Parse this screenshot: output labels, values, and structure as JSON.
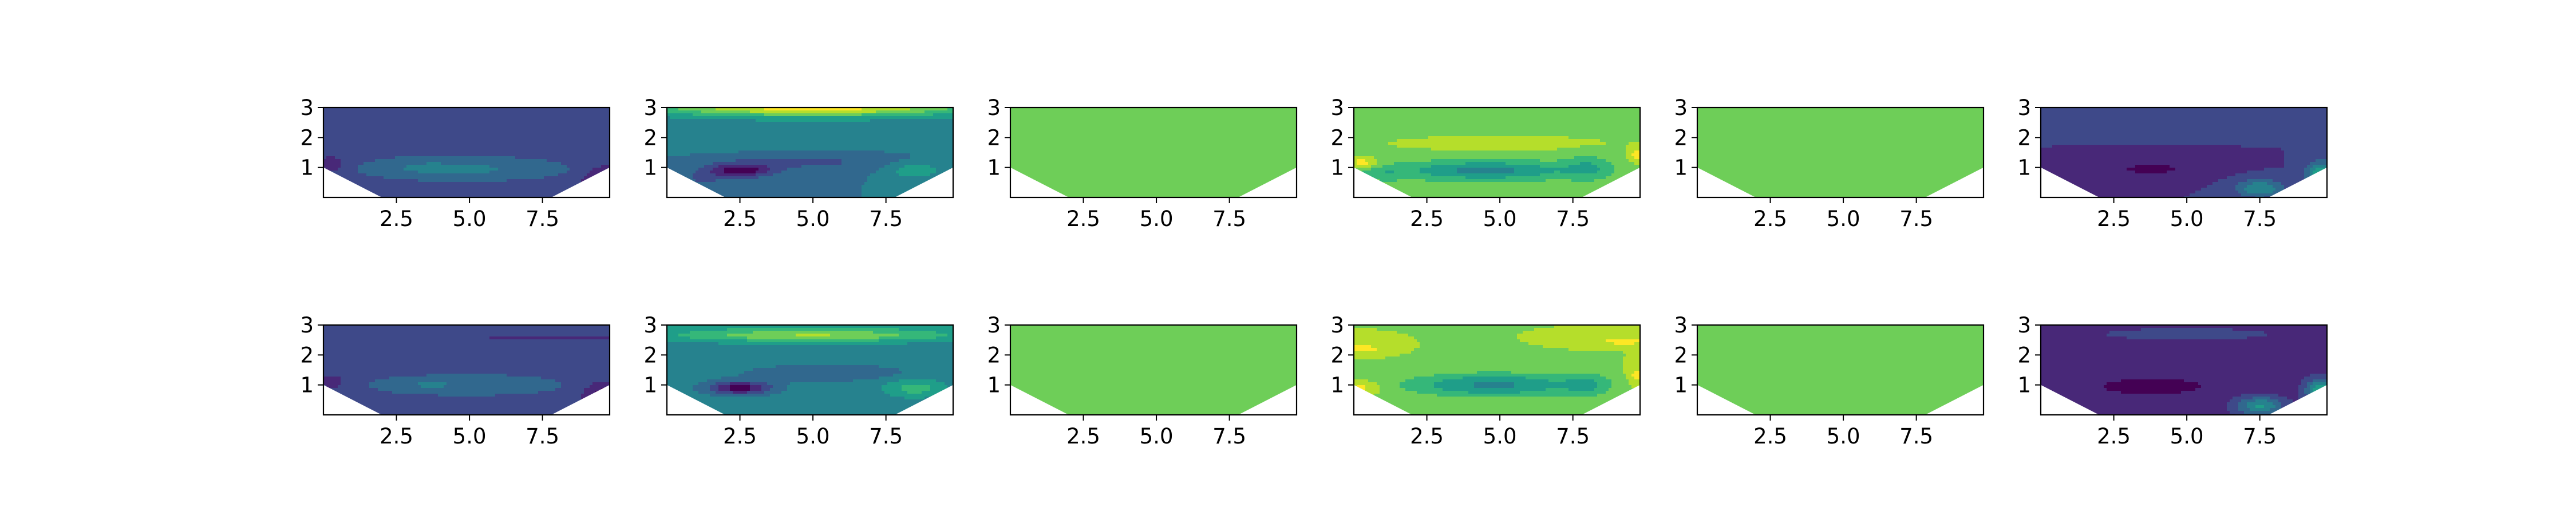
{
  "figure": {
    "background": "#ffffff",
    "grid": false,
    "legend": "none",
    "colormap": "viridis",
    "layout": "2 rows x 6 columns of filled contour panels"
  },
  "chart_data": {
    "type": "heatmap",
    "xlim": [
      0,
      9.8
    ],
    "ylim": [
      0,
      3
    ],
    "xticks": [
      "2.5",
      "5.0",
      "7.5"
    ],
    "yticks": [
      "1",
      "2",
      "3"
    ],
    "domain_boundary": {
      "description": "trapezoidal valley: data region is above a V-shaped bottom",
      "x": [
        0,
        2.0,
        7.8,
        9.8
      ],
      "y_bottom": [
        1.0,
        0.0,
        0.0,
        1.0
      ]
    },
    "panels": [
      {
        "row": 0,
        "col": 0,
        "style": "A",
        "mean": 0.25,
        "lobes": [
          {
            "x": 4.8,
            "y": 0.95,
            "sx": 3.4,
            "sy": 0.38,
            "a": 0.17
          },
          {
            "x": 3.2,
            "y": 1.05,
            "sx": 1.2,
            "sy": 0.25,
            "a": 0.04
          },
          {
            "x": 9.6,
            "y": 0.6,
            "sx": 0.7,
            "sy": 0.45,
            "a": -0.2
          },
          {
            "x": 0.3,
            "y": 1.1,
            "sx": 0.5,
            "sy": 0.3,
            "a": -0.12
          },
          {
            "x": 5.0,
            "y": 2.5,
            "sx": 6.0,
            "sy": 0.8,
            "a": 0.02
          }
        ]
      },
      {
        "row": 0,
        "col": 1,
        "style": "B",
        "mean": 0.4,
        "lobes": [
          {
            "x": 5.0,
            "y": 3.0,
            "sx": 6.0,
            "sy": 0.32,
            "a": 0.55
          },
          {
            "x": 5.0,
            "y": 2.0,
            "sx": 5.5,
            "sy": 0.5,
            "a": 0.08
          },
          {
            "x": 2.5,
            "y": 0.9,
            "sx": 1.1,
            "sy": 0.24,
            "a": -0.35
          },
          {
            "x": 5.0,
            "y": 1.2,
            "sx": 3.0,
            "sy": 0.35,
            "a": -0.12
          },
          {
            "x": 8.5,
            "y": 0.9,
            "sx": 1.0,
            "sy": 0.3,
            "a": 0.18
          },
          {
            "x": 1.2,
            "y": 0.6,
            "sx": 0.8,
            "sy": 0.3,
            "a": -0.1
          }
        ]
      },
      {
        "row": 0,
        "col": 2,
        "style": "C",
        "mean": 0.75,
        "lobes": []
      },
      {
        "row": 0,
        "col": 3,
        "style": "D",
        "mean": 0.76,
        "lobes": [
          {
            "x": 4.5,
            "y": 0.9,
            "sx": 2.8,
            "sy": 0.32,
            "a": -0.3
          },
          {
            "x": 0.3,
            "y": 1.15,
            "sx": 0.5,
            "sy": 0.18,
            "a": 0.2
          },
          {
            "x": 9.7,
            "y": 1.4,
            "sx": 0.3,
            "sy": 0.25,
            "a": 0.18
          },
          {
            "x": 5.0,
            "y": 1.8,
            "sx": 6.0,
            "sy": 0.4,
            "a": 0.06
          },
          {
            "x": 8.0,
            "y": 1.0,
            "sx": 0.8,
            "sy": 0.4,
            "a": -0.15
          },
          {
            "x": 1.0,
            "y": 0.8,
            "sx": 0.8,
            "sy": 0.25,
            "a": -0.1
          }
        ]
      },
      {
        "row": 0,
        "col": 4,
        "style": "C",
        "mean": 0.75,
        "lobes": []
      },
      {
        "row": 0,
        "col": 5,
        "style": "F",
        "mean": 0.2,
        "lobes": [
          {
            "x": 3.8,
            "y": 0.95,
            "sx": 2.0,
            "sy": 0.3,
            "a": -0.12
          },
          {
            "x": 9.6,
            "y": 0.8,
            "sx": 0.5,
            "sy": 0.4,
            "a": 0.4
          },
          {
            "x": 5.0,
            "y": 2.7,
            "sx": 6.0,
            "sy": 0.35,
            "a": 0.06
          },
          {
            "x": 7.5,
            "y": 0.3,
            "sx": 0.8,
            "sy": 0.3,
            "a": 0.3
          }
        ]
      },
      {
        "row": 1,
        "col": 0,
        "style": "A",
        "mean": 0.25,
        "lobes": [
          {
            "x": 5.0,
            "y": 1.0,
            "sx": 3.2,
            "sy": 0.35,
            "a": 0.14
          },
          {
            "x": 3.2,
            "y": 1.0,
            "sx": 1.1,
            "sy": 0.2,
            "a": 0.05
          },
          {
            "x": 9.6,
            "y": 0.7,
            "sx": 0.7,
            "sy": 0.4,
            "a": -0.2
          },
          {
            "x": 7.8,
            "y": 2.55,
            "sx": 2.5,
            "sy": 0.05,
            "a": -0.12
          },
          {
            "x": 0.3,
            "y": 1.1,
            "sx": 0.5,
            "sy": 0.3,
            "a": -0.1
          }
        ]
      },
      {
        "row": 1,
        "col": 1,
        "style": "B",
        "mean": 0.45,
        "lobes": [
          {
            "x": 5.0,
            "y": 2.65,
            "sx": 5.0,
            "sy": 0.22,
            "a": 0.35
          },
          {
            "x": 5.0,
            "y": 3.0,
            "sx": 6.0,
            "sy": 0.2,
            "a": 0.1
          },
          {
            "x": 2.5,
            "y": 0.9,
            "sx": 1.1,
            "sy": 0.22,
            "a": -0.4
          },
          {
            "x": 5.5,
            "y": 1.4,
            "sx": 3.0,
            "sy": 0.3,
            "a": -0.12
          },
          {
            "x": 8.5,
            "y": 0.9,
            "sx": 1.0,
            "sy": 0.3,
            "a": 0.2
          }
        ]
      },
      {
        "row": 1,
        "col": 2,
        "style": "C",
        "mean": 0.75,
        "lobes": []
      },
      {
        "row": 1,
        "col": 3,
        "style": "D",
        "mean": 0.8,
        "lobes": [
          {
            "x": 4.8,
            "y": 1.0,
            "sx": 3.0,
            "sy": 0.4,
            "a": -0.32
          },
          {
            "x": 0.3,
            "y": 2.2,
            "sx": 0.6,
            "sy": 0.14,
            "a": 0.18
          },
          {
            "x": 9.3,
            "y": 2.45,
            "sx": 1.0,
            "sy": 0.12,
            "a": 0.16
          },
          {
            "x": 9.7,
            "y": 1.3,
            "sx": 0.3,
            "sy": 0.3,
            "a": 0.16
          },
          {
            "x": 0.3,
            "y": 0.9,
            "sx": 0.6,
            "sy": 0.2,
            "a": 0.15
          },
          {
            "x": 8.0,
            "y": 1.0,
            "sx": 0.8,
            "sy": 0.4,
            "a": -0.15
          }
        ]
      },
      {
        "row": 1,
        "col": 4,
        "style": "C",
        "mean": 0.75,
        "lobes": []
      },
      {
        "row": 1,
        "col": 5,
        "style": "F",
        "mean": 0.16,
        "lobes": [
          {
            "x": 3.8,
            "y": 0.95,
            "sx": 2.0,
            "sy": 0.3,
            "a": -0.12
          },
          {
            "x": 9.6,
            "y": 0.8,
            "sx": 0.5,
            "sy": 0.4,
            "a": 0.45
          },
          {
            "x": 5.0,
            "y": 2.7,
            "sx": 6.0,
            "sy": 0.4,
            "a": 0.05
          },
          {
            "x": 7.5,
            "y": 0.3,
            "sx": 0.8,
            "sy": 0.3,
            "a": 0.35
          }
        ]
      }
    ],
    "contour_levels": [
      0.0,
      0.1,
      0.2,
      0.3,
      0.4,
      0.5,
      0.6,
      0.7,
      0.8,
      0.9,
      1.0
    ],
    "level_colors": [
      "#440154",
      "#482878",
      "#3e4989",
      "#31688e",
      "#26828e",
      "#1f9e89",
      "#35b779",
      "#6ece58",
      "#b5de2b",
      "#fde725"
    ]
  }
}
